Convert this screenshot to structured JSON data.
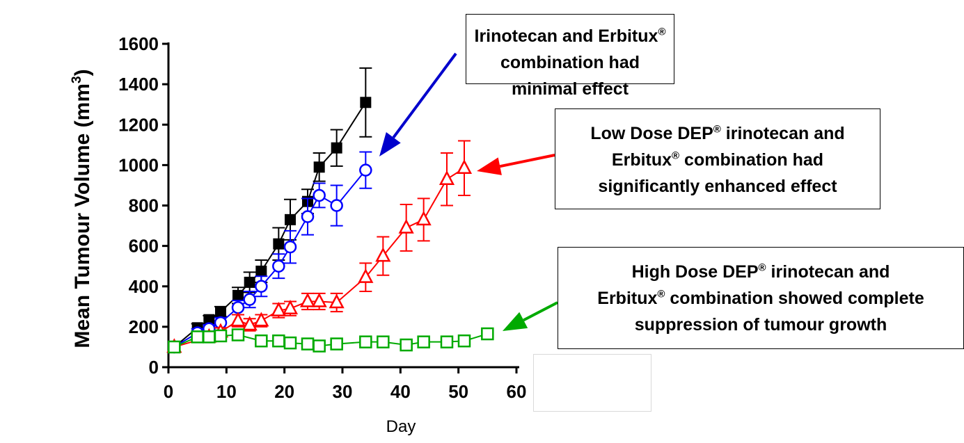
{
  "chart_data": {
    "type": "line",
    "xlabel": "Day",
    "ylabel": "Mean Tumour  Volume (mm",
    "ylabel_sup": "3",
    "ylabel_close": ")",
    "xlim": [
      0,
      60
    ],
    "ylim": [
      0,
      1600
    ],
    "xticks": [
      "0",
      "10",
      "20",
      "30",
      "40",
      "50",
      "60"
    ],
    "yticks": [
      "0",
      "200",
      "400",
      "600",
      "800",
      "1000",
      "1200",
      "1400",
      "1600"
    ],
    "grid": false,
    "series": [
      {
        "color": "#000000",
        "marker": "filled-square",
        "x": [
          1,
          5,
          7,
          9,
          12,
          14,
          16,
          19,
          21,
          24,
          26,
          29,
          34
        ],
        "y": [
          100,
          195,
          235,
          275,
          355,
          420,
          475,
          610,
          730,
          820,
          990,
          1085,
          1310
        ],
        "err": [
          15,
          20,
          20,
          25,
          40,
          50,
          55,
          80,
          100,
          60,
          70,
          90,
          170
        ]
      },
      {
        "color": "#0000ff",
        "marker": "open-circle",
        "x": [
          1,
          5,
          7,
          9,
          12,
          14,
          16,
          19,
          21,
          24,
          26,
          29,
          34
        ],
        "y": [
          100,
          170,
          190,
          220,
          295,
          335,
          400,
          500,
          595,
          745,
          850,
          800,
          975
        ],
        "err": [
          15,
          20,
          20,
          25,
          35,
          40,
          50,
          60,
          80,
          90,
          60,
          100,
          90
        ]
      },
      {
        "color": "#ff0000",
        "marker": "open-triangle",
        "x": [
          1,
          7,
          9,
          12,
          14,
          16,
          19,
          21,
          24,
          26,
          29,
          34,
          37,
          41,
          44,
          48,
          51
        ],
        "y": [
          100,
          150,
          175,
          230,
          210,
          230,
          280,
          290,
          325,
          325,
          320,
          445,
          550,
          690,
          730,
          930,
          985
        ],
        "err": [
          10,
          15,
          20,
          30,
          30,
          30,
          35,
          35,
          40,
          40,
          45,
          70,
          95,
          115,
          105,
          130,
          135
        ]
      },
      {
        "color": "#00aa00",
        "marker": "open-square",
        "x": [
          1,
          5,
          7,
          9,
          12,
          16,
          19,
          21,
          24,
          26,
          29,
          34,
          37,
          41,
          44,
          48,
          51,
          55
        ],
        "y": [
          100,
          150,
          150,
          155,
          160,
          130,
          130,
          120,
          115,
          105,
          115,
          125,
          125,
          110,
          125,
          125,
          130,
          165
        ],
        "err": [
          10,
          15,
          15,
          15,
          15,
          15,
          15,
          15,
          15,
          15,
          15,
          15,
          15,
          15,
          15,
          15,
          15,
          15
        ]
      }
    ],
    "annotations": [
      {
        "line1": "Irinotecan and Erbitux",
        "line1_sup": "®",
        "line2": "combination had minimal effect",
        "line3": "",
        "color": "#0000cc"
      },
      {
        "line1": "Low Dose DEP",
        "line1_sup": "®",
        "line1_rest": " irinotecan and",
        "line2": "Erbitux",
        "line2_sup": "®",
        "line2_rest": " combination had",
        "line3": "significantly enhanced effect",
        "color": "#ff0000"
      },
      {
        "line1": "High Dose DEP",
        "line1_sup": "®",
        "line1_rest": " irinotecan and",
        "line2": "Erbitux",
        "line2_sup": "®",
        "line2_rest": " combination showed complete",
        "line3": "suppression of tumour growth",
        "color": "#00aa00"
      }
    ]
  }
}
